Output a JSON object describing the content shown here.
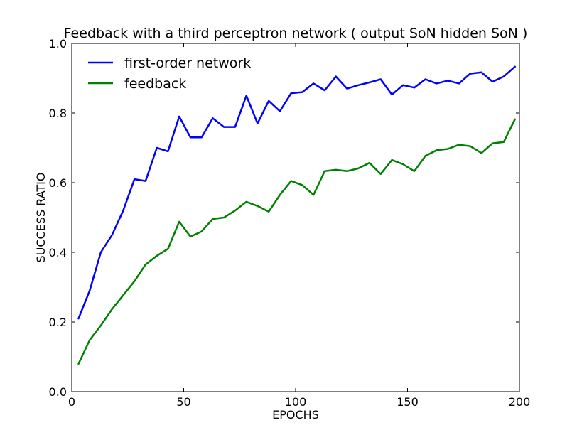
{
  "chart_data": {
    "type": "line",
    "title": "Feedback with a third perceptron network ( output SoN hidden SoN )",
    "xlabel": "EPOCHS",
    "ylabel": "SUCCESS RATIO",
    "xlim": [
      0,
      200
    ],
    "ylim": [
      0.0,
      1.0
    ],
    "xticks": [
      "0",
      "50",
      "100",
      "150",
      "200"
    ],
    "yticks": [
      "0.0",
      "0.2",
      "0.4",
      "0.6",
      "0.8",
      "1.0"
    ],
    "grid": false,
    "legend_position": "top-left",
    "x": [
      3,
      8,
      13,
      18,
      23,
      28,
      33,
      38,
      43,
      48,
      53,
      58,
      63,
      68,
      73,
      78,
      83,
      88,
      93,
      98,
      103,
      108,
      113,
      118,
      123,
      128,
      133,
      138,
      143,
      148,
      153,
      158,
      163,
      168,
      173,
      178,
      183,
      188,
      193,
      198
    ],
    "series": [
      {
        "name": "first-order network",
        "color": "#0000ff",
        "values": [
          0.21,
          0.29,
          0.4,
          0.45,
          0.52,
          0.61,
          0.605,
          0.7,
          0.69,
          0.79,
          0.73,
          0.73,
          0.785,
          0.76,
          0.76,
          0.85,
          0.77,
          0.835,
          0.805,
          0.857,
          0.86,
          0.885,
          0.865,
          0.905,
          0.87,
          0.88,
          0.888,
          0.897,
          0.853,
          0.88,
          0.873,
          0.897,
          0.885,
          0.893,
          0.885,
          0.913,
          0.917,
          0.89,
          0.905,
          0.933
        ]
      },
      {
        "name": "feedback",
        "color": "#008000",
        "values": [
          0.08,
          0.148,
          0.19,
          0.237,
          0.277,
          0.317,
          0.365,
          0.39,
          0.41,
          0.488,
          0.445,
          0.46,
          0.496,
          0.5,
          0.52,
          0.545,
          0.533,
          0.517,
          0.565,
          0.605,
          0.593,
          0.565,
          0.633,
          0.637,
          0.633,
          0.641,
          0.657,
          0.625,
          0.665,
          0.653,
          0.633,
          0.677,
          0.693,
          0.697,
          0.709,
          0.705,
          0.685,
          0.713,
          0.717,
          0.782
        ]
      }
    ]
  }
}
